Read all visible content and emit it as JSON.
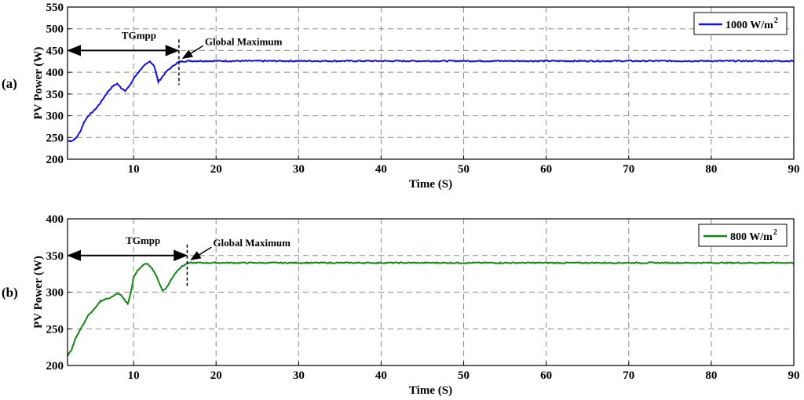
{
  "chart_data": [
    {
      "type": "line",
      "panel_label": "(a)",
      "xlabel": "Time (S)",
      "ylabel": "PV Power (W)",
      "xlim": [
        2,
        90
      ],
      "ylim": [
        200,
        550
      ],
      "xticks": [
        10,
        20,
        30,
        40,
        50,
        60,
        70,
        80,
        90
      ],
      "yticks": [
        200,
        250,
        300,
        350,
        400,
        450,
        500,
        550
      ],
      "grid": true,
      "legend_position": "top-right",
      "legend": {
        "text": "1000 W/m",
        "superscript": "2"
      },
      "color": "#1010e0",
      "series": [
        {
          "x": [
            2,
            2.5,
            3,
            3.5,
            4,
            4.5,
            5,
            5.5,
            6,
            6.5,
            7,
            7.5,
            8,
            8.5,
            9,
            9.5,
            10,
            10.5,
            11,
            11.5,
            12,
            12.5,
            13,
            13.5,
            14,
            14.5,
            15,
            15.5,
            16,
            16.5,
            17,
            18,
            20,
            30,
            40,
            50,
            60,
            70,
            80,
            90
          ],
          "values": [
            243,
            242,
            248,
            262,
            285,
            300,
            308,
            318,
            330,
            345,
            358,
            368,
            374,
            364,
            358,
            368,
            385,
            398,
            410,
            418,
            425,
            415,
            378,
            390,
            402,
            410,
            418,
            424,
            425,
            426,
            426,
            426,
            426,
            426,
            426,
            426,
            426,
            426,
            426,
            426
          ]
        }
      ],
      "annotations": [
        {
          "text": "TGmpp",
          "arrow_from": 2,
          "arrow_to": 15.5,
          "y": 450
        },
        {
          "text": "Global Maximum",
          "x": 15.5,
          "y": 425
        }
      ]
    },
    {
      "type": "line",
      "panel_label": "(b)",
      "xlabel": "Time (S)",
      "ylabel": "PV Power (W)",
      "xlim": [
        2,
        90
      ],
      "ylim": [
        200,
        400
      ],
      "xticks": [
        10,
        20,
        30,
        40,
        50,
        60,
        70,
        80,
        90
      ],
      "yticks": [
        200,
        250,
        300,
        350,
        400
      ],
      "grid": true,
      "legend_position": "top-right",
      "legend": {
        "text": "800 W/m",
        "superscript": "2"
      },
      "color": "#148414",
      "series": [
        {
          "x": [
            2,
            2.5,
            3,
            3.5,
            4,
            4.5,
            5,
            5.5,
            6,
            6.5,
            7,
            7.5,
            8,
            8.5,
            9,
            9.3,
            9.7,
            10,
            10.5,
            11,
            11.5,
            12,
            12.5,
            13,
            13.5,
            14,
            14.5,
            15,
            15.5,
            16,
            16.5,
            17,
            18,
            20,
            30,
            40,
            50,
            60,
            70,
            80,
            90
          ],
          "values": [
            213,
            222,
            238,
            248,
            258,
            268,
            274,
            280,
            288,
            290,
            292,
            294,
            298,
            296,
            288,
            284,
            300,
            320,
            330,
            335,
            339,
            336,
            328,
            316,
            302,
            306,
            316,
            325,
            332,
            336,
            339,
            340,
            340,
            340,
            340,
            340,
            340,
            340,
            340,
            340,
            340
          ]
        }
      ],
      "annotations": [
        {
          "text": "TGmpp",
          "arrow_from": 2,
          "arrow_to": 16.5,
          "y": 350
        },
        {
          "text": "Global Maximum",
          "x": 16.5,
          "y": 340
        }
      ]
    }
  ]
}
